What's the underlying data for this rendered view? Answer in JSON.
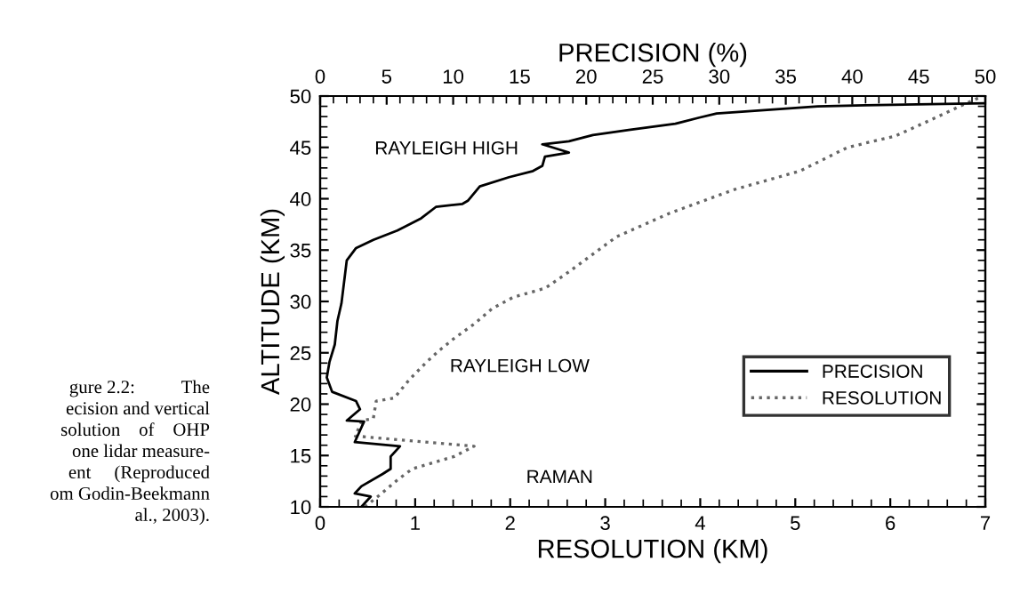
{
  "chart_data": {
    "type": "line",
    "x2label": "PRECISION (%)",
    "xlabel": "RESOLUTION (KM)",
    "ylabel": "ALTITUDE (KM)",
    "xlim": [
      0,
      7
    ],
    "xticks": [
      0,
      1,
      2,
      3,
      4,
      5,
      6,
      7
    ],
    "x2lim": [
      0,
      50
    ],
    "x2ticks": [
      0,
      5,
      10,
      15,
      20,
      25,
      30,
      35,
      40,
      45,
      50
    ],
    "ylim": [
      10,
      50
    ],
    "yticks": [
      10,
      15,
      20,
      25,
      30,
      35,
      40,
      45,
      50
    ],
    "grid": false,
    "legend": "bottom right",
    "marker": "none",
    "series": [
      {
        "name": "PRECISION",
        "color": "#000000",
        "axis": "x2",
        "line_style": "solid",
        "x": [
          3.1,
          3.8,
          2.6,
          3.1,
          4.7,
          5.3,
          5.3,
          5.3,
          6.0,
          2.6,
          3.3,
          2.0,
          3.0,
          2.7,
          0.9,
          0.5,
          0.7,
          1.1,
          1.3,
          1.6,
          2.0,
          2.7,
          4.0,
          5.8,
          7.6,
          8.7,
          10.7,
          11.1,
          12.0,
          14.2,
          16.0,
          16.7,
          16.9,
          18.7,
          16.7,
          18.7,
          20.5,
          23.2,
          26.7,
          28.5,
          29.8,
          37.4,
          41.0,
          50.0
        ],
        "values": [
          10,
          11.0,
          11.3,
          12.0,
          13.2,
          13.7,
          14.3,
          14.9,
          15.9,
          16.3,
          18.3,
          18.4,
          19.5,
          20.3,
          21.2,
          22.6,
          24.1,
          25.8,
          28.1,
          29.8,
          34.0,
          35.2,
          36.0,
          36.9,
          38.1,
          39.2,
          39.5,
          39.8,
          41.2,
          42.1,
          42.7,
          43.2,
          44.1,
          44.5,
          45.3,
          45.6,
          46.2,
          46.7,
          47.3,
          47.9,
          48.3,
          49.0,
          49.1,
          49.3
        ]
      },
      {
        "name": "RESOLUTION",
        "color": "#666666",
        "line_style": "dotted",
        "x": [
          0.47,
          0.62,
          0.81,
          0.97,
          1.41,
          1.62,
          0.37,
          0.44,
          0.56,
          0.59,
          0.78,
          0.94,
          1.12,
          1.25,
          1.41,
          1.62,
          1.81,
          2.03,
          2.37,
          2.62,
          3.12,
          3.68,
          4.36,
          5.05,
          5.55,
          6.05,
          6.48,
          6.8,
          6.95
        ],
        "values": [
          10,
          11.1,
          12.6,
          13.7,
          14.9,
          15.9,
          16.9,
          18.4,
          18.6,
          20.3,
          20.6,
          22.4,
          24.1,
          25.2,
          26.4,
          27.8,
          29.3,
          30.4,
          31.3,
          32.9,
          36.3,
          38.6,
          40.9,
          42.7,
          45.0,
          46.1,
          47.9,
          49.3,
          49.9
        ]
      }
    ],
    "annotations": [
      "RAYLEIGH HIGH",
      "RAYLEIGH LOW",
      "RAMAN",
      "gure 2.2:          The\necision and vertical\nsolution    of    OHP\none lidar measure-\nent     (Reproduced\nom Godin-Beekmann\n al., 2003)."
    ]
  }
}
